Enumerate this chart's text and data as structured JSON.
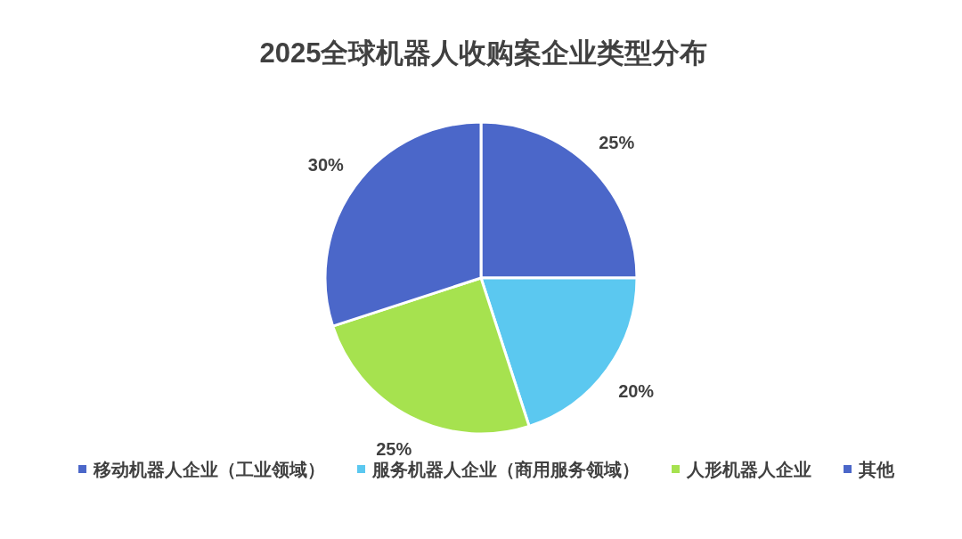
{
  "chart_data": {
    "type": "pie",
    "title": "2025全球机器人收购案企业类型分布",
    "categories": [
      "移动机器人企业（工业领域）",
      "服务机器人企业（商用服务领域）",
      "人形机器人企业",
      "其他"
    ],
    "values": [
      25,
      20,
      25,
      30
    ],
    "colors": [
      "#4b67c9",
      "#5bc8f0",
      "#a6e24f",
      "#4b67c9"
    ],
    "value_labels": [
      "25%",
      "20%",
      "25%",
      "30%"
    ],
    "legend": "bottom"
  }
}
